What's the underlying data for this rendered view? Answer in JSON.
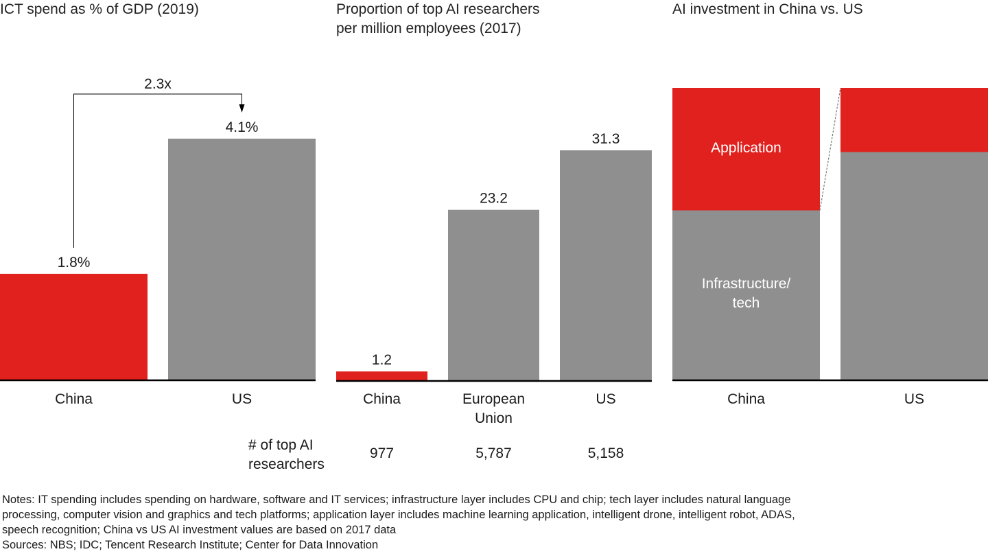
{
  "colors": {
    "red": "#e1211e",
    "gray": "#8f8f8f",
    "axis": "#000000",
    "text": "#1a1a1a",
    "inside_text": "#ffffff",
    "connector": "#777777"
  },
  "chart_data": [
    {
      "type": "bar",
      "title": "ICT spend as % of GDP (2019)",
      "categories": [
        "China",
        "US"
      ],
      "values": [
        1.8,
        4.1
      ],
      "value_labels": [
        "1.8%",
        "4.1%"
      ],
      "bar_colors": [
        "red",
        "gray"
      ],
      "ylim": [
        0,
        4.1
      ],
      "grid": false,
      "annotation": {
        "text": "2.3x",
        "from": "China",
        "to": "US",
        "type": "elbow-arrow"
      }
    },
    {
      "type": "bar",
      "title": "Proportion of top AI researchers per million employees (2017)",
      "title_lines": [
        "Proportion of top AI researchers",
        "per million employees (2017)"
      ],
      "categories": [
        "China",
        "European Union",
        "US"
      ],
      "category_lines": [
        [
          "China"
        ],
        [
          "European",
          "Union"
        ],
        [
          "US"
        ]
      ],
      "values": [
        1.2,
        23.2,
        31.3
      ],
      "value_labels": [
        "1.2",
        "23.2",
        "31.3"
      ],
      "bar_colors": [
        "red",
        "gray",
        "gray"
      ],
      "ylim": [
        0,
        31.3
      ],
      "grid": false,
      "table_row": {
        "label_lines": [
          "# of top AI",
          "researchers"
        ],
        "values": [
          "977",
          "5,787",
          "5,158"
        ]
      }
    },
    {
      "type": "bar",
      "stacked": true,
      "normalized": true,
      "title": "AI investment in China vs. US",
      "categories": [
        "China",
        "US"
      ],
      "series": [
        {
          "name": "Infrastructure/ tech",
          "label_lines": [
            "Infrastructure/",
            "tech"
          ],
          "color": "gray",
          "values": [
            0.58,
            0.78
          ]
        },
        {
          "name": "Application",
          "label_lines": [
            "Application"
          ],
          "color": "red",
          "values": [
            0.42,
            0.22
          ]
        }
      ],
      "ylim": [
        0,
        1
      ],
      "grid": false,
      "connector": "dashed line between Application segment boundaries"
    }
  ],
  "notes": [
    "Notes: IT spending includes spending on hardware, software and IT services; infrastructure layer includes CPU and chip; tech layer includes natural language",
    "processing, computer vision and graphics and tech platforms; application layer includes machine learning application, intelligent drone, intelligent robot, ADAS,",
    "speech recognition; China vs US AI investment values are based on 2017 data"
  ],
  "sources": "Sources: NBS; IDC; Tencent Research Institute; Center for Data Innovation"
}
